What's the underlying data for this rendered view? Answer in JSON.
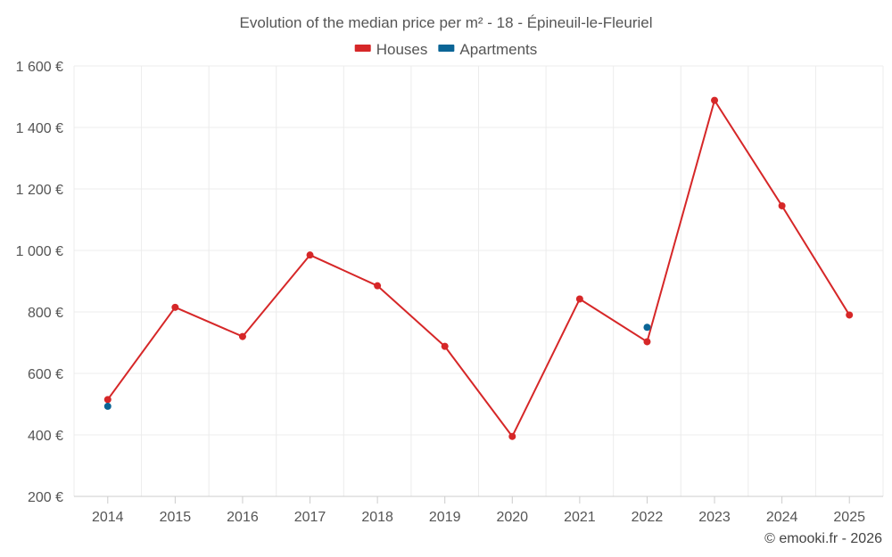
{
  "chart_data": {
    "type": "line",
    "title": "Evolution of the median price per m² - 18 - Épineuil-le-Fleuriel",
    "categories": [
      "2014",
      "2015",
      "2016",
      "2017",
      "2018",
      "2019",
      "2020",
      "2021",
      "2022",
      "2023",
      "2024",
      "2025"
    ],
    "series": [
      {
        "name": "Houses",
        "color": "#d62728",
        "values": [
          515,
          815,
          720,
          985,
          885,
          688,
          395,
          842,
          703,
          1488,
          1145,
          790
        ]
      },
      {
        "name": "Apartments",
        "color": "#0b6596",
        "values": [
          493,
          null,
          null,
          null,
          null,
          null,
          null,
          null,
          750,
          null,
          null,
          null
        ]
      }
    ],
    "y_ticks": [
      200,
      400,
      600,
      800,
      1000,
      1200,
      1400,
      1600
    ],
    "y_tick_labels": [
      "200 €",
      "400 €",
      "600 €",
      "800 €",
      "1 000 €",
      "1 200 €",
      "1 400 €",
      "1 600 €"
    ],
    "ylim": [
      200,
      1600
    ],
    "grid": true,
    "legend_position": "top-center",
    "xlabel": "",
    "ylabel": ""
  },
  "credit": "© emooki.fr - 2026"
}
